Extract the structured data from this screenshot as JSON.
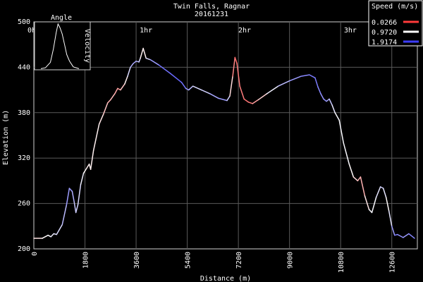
{
  "chart_data": {
    "type": "line",
    "title": "Twin Falls, Ragnar",
    "subtitle": "20161231",
    "xlabel": "Distance (m)",
    "ylabel": "Elevation (m)",
    "xlim": [
      0,
      13500
    ],
    "ylim": [
      200,
      500
    ],
    "x_ticks": [
      "0",
      "1800",
      "3600",
      "5400",
      "7200",
      "9000",
      "10800",
      "12600"
    ],
    "y_ticks": [
      "200",
      "260",
      "320",
      "380",
      "440",
      "500"
    ],
    "time_marks": [
      {
        "label": "0hr",
        "x": 0
      },
      {
        "label": "1hr",
        "x": 3950
      },
      {
        "label": "2hr",
        "x": 7420
      },
      {
        "label": "3hr",
        "x": 11140
      }
    ],
    "grid": true,
    "legend": {
      "title": "Speed (m/s)",
      "placement": "top-right",
      "entries": [
        {
          "label": "0.0266",
          "color": "#ff3a3a"
        },
        {
          "label": "0.9720",
          "color": "#ffffff"
        },
        {
          "label": "1.9174",
          "color": "#3c3cff"
        }
      ]
    },
    "inset": {
      "title": "Angle",
      "side_label": "Velocity"
    },
    "series": [
      {
        "points": [
          [
            0,
            214,
            0.8
          ],
          [
            300,
            214,
            0.9
          ],
          [
            500,
            218,
            1.0
          ],
          [
            600,
            216,
            1.0
          ],
          [
            700,
            220,
            1.1
          ],
          [
            800,
            219,
            1.1
          ],
          [
            1000,
            232,
            1.2
          ],
          [
            1150,
            258,
            1.4
          ],
          [
            1250,
            280,
            1.5
          ],
          [
            1350,
            276,
            1.4
          ],
          [
            1420,
            262,
            1.3
          ],
          [
            1480,
            248,
            1.2
          ],
          [
            1550,
            258,
            1.2
          ],
          [
            1650,
            285,
            1.1
          ],
          [
            1750,
            300,
            1.0
          ],
          [
            1850,
            306,
            0.9
          ],
          [
            1950,
            312,
            0.9
          ],
          [
            2000,
            305,
            0.9
          ],
          [
            2100,
            330,
            0.9
          ],
          [
            2300,
            365,
            0.9
          ],
          [
            2450,
            378,
            0.8
          ],
          [
            2600,
            393,
            0.6
          ],
          [
            2700,
            397,
            0.6
          ],
          [
            2850,
            405,
            0.7
          ],
          [
            2950,
            412,
            0.4
          ],
          [
            3050,
            410,
            0.6
          ],
          [
            3200,
            418,
            0.8
          ],
          [
            3300,
            428,
            1.0
          ],
          [
            3400,
            440,
            1.3
          ],
          [
            3500,
            445,
            1.4
          ],
          [
            3600,
            448,
            1.4
          ],
          [
            3700,
            447,
            1.3
          ],
          [
            3750,
            452,
            1.0
          ],
          [
            3850,
            465,
            0.8
          ],
          [
            3950,
            452,
            1.0
          ],
          [
            4100,
            450,
            1.3
          ],
          [
            4400,
            443,
            1.6
          ],
          [
            4800,
            432,
            1.7
          ],
          [
            5200,
            420,
            1.7
          ],
          [
            5350,
            412,
            1.6
          ],
          [
            5450,
            410,
            1.4
          ],
          [
            5600,
            415,
            1.2
          ],
          [
            5900,
            410,
            1.1
          ],
          [
            6200,
            405,
            1.3
          ],
          [
            6500,
            399,
            1.5
          ],
          [
            6800,
            396,
            1.4
          ],
          [
            6900,
            402,
            1.0
          ],
          [
            7000,
            428,
            0.6
          ],
          [
            7080,
            453,
            0.2
          ],
          [
            7150,
            445,
            0.3
          ],
          [
            7250,
            415,
            0.4
          ],
          [
            7400,
            398,
            0.3
          ],
          [
            7550,
            394,
            0.3
          ],
          [
            7700,
            392,
            0.4
          ],
          [
            7900,
            397,
            0.6
          ],
          [
            8200,
            405,
            0.9
          ],
          [
            8600,
            415,
            1.2
          ],
          [
            9000,
            422,
            1.4
          ],
          [
            9400,
            428,
            1.5
          ],
          [
            9700,
            430,
            1.6
          ],
          [
            9900,
            426,
            1.6
          ],
          [
            10000,
            414,
            1.6
          ],
          [
            10100,
            405,
            1.5
          ],
          [
            10200,
            398,
            1.5
          ],
          [
            10300,
            395,
            1.5
          ],
          [
            10400,
            398,
            1.3
          ],
          [
            10500,
            390,
            1.2
          ],
          [
            10600,
            380,
            1.0
          ],
          [
            10750,
            370,
            1.0
          ],
          [
            10900,
            340,
            1.0
          ],
          [
            11100,
            312,
            1.0
          ],
          [
            11250,
            295,
            0.9
          ],
          [
            11400,
            290,
            0.7
          ],
          [
            11500,
            295,
            0.5
          ],
          [
            11650,
            270,
            0.7
          ],
          [
            11800,
            252,
            1.0
          ],
          [
            11900,
            248,
            1.0
          ],
          [
            12050,
            268,
            1.0
          ],
          [
            12200,
            282,
            1.2
          ],
          [
            12300,
            280,
            1.2
          ],
          [
            12400,
            268,
            1.0
          ],
          [
            12500,
            250,
            0.9
          ],
          [
            12600,
            230,
            1.3
          ],
          [
            12700,
            218,
            1.6
          ],
          [
            12800,
            219,
            1.6
          ],
          [
            13000,
            215,
            1.4
          ],
          [
            13200,
            220,
            1.5
          ],
          [
            13400,
            214,
            1.6
          ]
        ]
      }
    ],
    "inset_curve": [
      [
        0.0,
        0.01
      ],
      [
        0.12,
        0.03
      ],
      [
        0.25,
        0.15
      ],
      [
        0.33,
        0.45
      ],
      [
        0.4,
        0.8
      ],
      [
        0.45,
        1.0
      ],
      [
        0.5,
        0.92
      ],
      [
        0.56,
        0.78
      ],
      [
        0.62,
        0.55
      ],
      [
        0.68,
        0.32
      ],
      [
        0.75,
        0.18
      ],
      [
        0.85,
        0.05
      ],
      [
        1.0,
        0.01
      ]
    ]
  }
}
